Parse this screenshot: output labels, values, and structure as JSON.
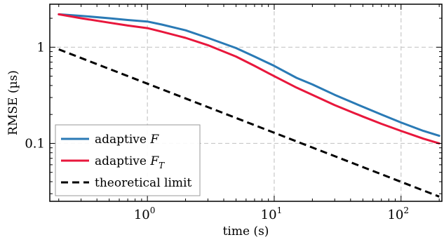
{
  "chart_data": {
    "type": "line",
    "xlabel": "time (s)",
    "ylabel": "RMSE (µs)",
    "xscale": "log",
    "yscale": "log",
    "xlim": [
      0.17,
      210
    ],
    "ylim": [
      0.025,
      2.8
    ],
    "x_ticks": [
      {
        "value": 1,
        "base": "10",
        "exp": "0"
      },
      {
        "value": 10,
        "base": "10",
        "exp": "1"
      },
      {
        "value": 100,
        "base": "10",
        "exp": "2"
      }
    ],
    "y_ticks": [
      {
        "value": 0.1,
        "label": "0.1"
      },
      {
        "value": 1,
        "label": "1"
      }
    ],
    "grid": true,
    "legend_position": "bottom-left",
    "series": [
      {
        "name": "adaptive F",
        "legend_text": "adaptive ",
        "legend_math": "F",
        "legend_sub": "",
        "color": "#2a7ab5",
        "dash": "solid",
        "x": [
          0.2,
          0.3,
          0.5,
          0.7,
          1.0,
          1.3,
          2.0,
          3.0,
          5.0,
          7.0,
          10,
          15,
          20,
          30,
          50,
          70,
          100,
          150,
          200
        ],
        "y": [
          2.2,
          2.12,
          2.0,
          1.92,
          1.85,
          1.72,
          1.5,
          1.25,
          0.98,
          0.8,
          0.64,
          0.48,
          0.41,
          0.32,
          0.24,
          0.2,
          0.165,
          0.135,
          0.12
        ]
      },
      {
        "name": "adaptive F_T",
        "legend_text": "adaptive ",
        "legend_math": "F",
        "legend_sub": "T",
        "color": "#e8173c",
        "dash": "solid",
        "x": [
          0.2,
          0.3,
          0.5,
          0.7,
          1.0,
          1.3,
          2.0,
          3.0,
          5.0,
          7.0,
          10,
          15,
          20,
          30,
          50,
          70,
          100,
          150,
          200
        ],
        "y": [
          2.2,
          2.0,
          1.8,
          1.68,
          1.58,
          1.45,
          1.25,
          1.05,
          0.8,
          0.64,
          0.5,
          0.38,
          0.32,
          0.25,
          0.19,
          0.16,
          0.135,
          0.112,
          0.1
        ]
      },
      {
        "name": "theoretical limit",
        "legend_text": "theoretical limit",
        "legend_math": "",
        "legend_sub": "",
        "color": "#000000",
        "dash": "dashed",
        "x": [
          0.2,
          200
        ],
        "y": [
          0.95,
          0.028
        ]
      }
    ]
  }
}
